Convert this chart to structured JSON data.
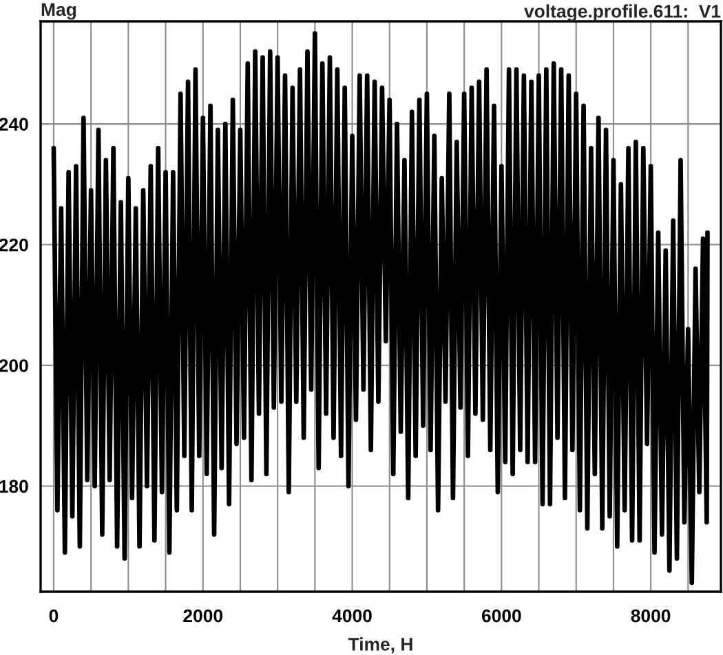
{
  "chart_data": {
    "type": "line",
    "title": "voltage.profile.611:  V1",
    "ylabel": "Mag",
    "xlabel": "Time, H",
    "xlim": [
      -175,
      8940
    ],
    "ylim": [
      162.5,
      257
    ],
    "xticks": [
      0,
      {
        "value": 500,
        "label": null
      },
      {
        "value": 1000,
        "label": null
      },
      {
        "value": 1500,
        "label": null
      },
      2000,
      {
        "value": 2500,
        "label": null
      },
      {
        "value": 3000,
        "label": null
      },
      {
        "value": 3500,
        "label": null
      },
      4000,
      {
        "value": 4500,
        "label": null
      },
      {
        "value": 5000,
        "label": null
      },
      {
        "value": 5500,
        "label": null
      },
      6000,
      {
        "value": 6500,
        "label": null
      },
      {
        "value": 7000,
        "label": null
      },
      {
        "value": 7500,
        "label": null
      },
      8000,
      {
        "value": 8500,
        "label": null
      }
    ],
    "yticks": [
      180,
      200,
      220,
      240
    ],
    "grid": true,
    "line_style": "solid",
    "series": [
      {
        "color": "#000000",
        "x": [
          0,
          50,
          100,
          150,
          200,
          250,
          300,
          350,
          400,
          450,
          500,
          550,
          600,
          650,
          700,
          750,
          800,
          850,
          900,
          950,
          1000,
          1050,
          1100,
          1150,
          1200,
          1250,
          1300,
          1350,
          1400,
          1450,
          1500,
          1550,
          1600,
          1650,
          1700,
          1750,
          1800,
          1850,
          1900,
          1950,
          2000,
          2050,
          2100,
          2150,
          2200,
          2250,
          2300,
          2350,
          2400,
          2450,
          2500,
          2550,
          2600,
          2650,
          2700,
          2750,
          2800,
          2850,
          2900,
          2950,
          3000,
          3050,
          3100,
          3150,
          3200,
          3250,
          3300,
          3350,
          3400,
          3450,
          3500,
          3550,
          3600,
          3650,
          3700,
          3750,
          3800,
          3850,
          3900,
          3950,
          4000,
          4050,
          4100,
          4150,
          4200,
          4250,
          4300,
          4350,
          4400,
          4450,
          4500,
          4550,
          4600,
          4650,
          4700,
          4750,
          4800,
          4850,
          4900,
          4950,
          5000,
          5050,
          5100,
          5150,
          5200,
          5250,
          5300,
          5350,
          5400,
          5450,
          5500,
          5550,
          5600,
          5650,
          5700,
          5750,
          5800,
          5850,
          5900,
          5950,
          6000,
          6050,
          6100,
          6150,
          6200,
          6250,
          6300,
          6350,
          6400,
          6450,
          6500,
          6550,
          6600,
          6650,
          6700,
          6750,
          6800,
          6850,
          6900,
          6950,
          7000,
          7050,
          7100,
          7150,
          7200,
          7250,
          7300,
          7350,
          7400,
          7450,
          7500,
          7550,
          7600,
          7650,
          7700,
          7750,
          7800,
          7850,
          7900,
          7950,
          8000,
          8050,
          8100,
          8150,
          8200,
          8250,
          8300,
          8350,
          8400,
          8450,
          8500,
          8550,
          8600,
          8650,
          8700,
          8750,
          8760
        ],
        "values": [
          236,
          176,
          226,
          169,
          232,
          175,
          233,
          170,
          241,
          181,
          229,
          180,
          239,
          172,
          234,
          181,
          236,
          170,
          227,
          168,
          231,
          178,
          226,
          170,
          229,
          180,
          233,
          171,
          236,
          179,
          232,
          169,
          232,
          176,
          245,
          185,
          247,
          176,
          249,
          185,
          241,
          182,
          243,
          172,
          239,
          183,
          240,
          177,
          244,
          187,
          239,
          188,
          250,
          181,
          252,
          192,
          251,
          182,
          252,
          193,
          251,
          194,
          248,
          179,
          246,
          194,
          249,
          188,
          252,
          196,
          255,
          183,
          250,
          192,
          251,
          188,
          249,
          185,
          246,
          180,
          238,
          191,
          248,
          196,
          248,
          186,
          247,
          194,
          246,
          204,
          244,
          182,
          240,
          189,
          234,
          178,
          242,
          185,
          244,
          190,
          245,
          186,
          238,
          176,
          231,
          194,
          245,
          178,
          237,
          193,
          245,
          185,
          246,
          192,
          247,
          191,
          249,
          186,
          243,
          179,
          233,
          184,
          249,
          182,
          249,
          186,
          248,
          184,
          247,
          184,
          248,
          177,
          249,
          177,
          250,
          188,
          249,
          178,
          248,
          186,
          245,
          176,
          243,
          173,
          236,
          182,
          241,
          173,
          239,
          175,
          234,
          170,
          230,
          176,
          236,
          171,
          237,
          171,
          236,
          187,
          233,
          169,
          222,
          172,
          219,
          166,
          224,
          168,
          234,
          174,
          206,
          164,
          216,
          179,
          221,
          174,
          222
        ]
      }
    ]
  }
}
